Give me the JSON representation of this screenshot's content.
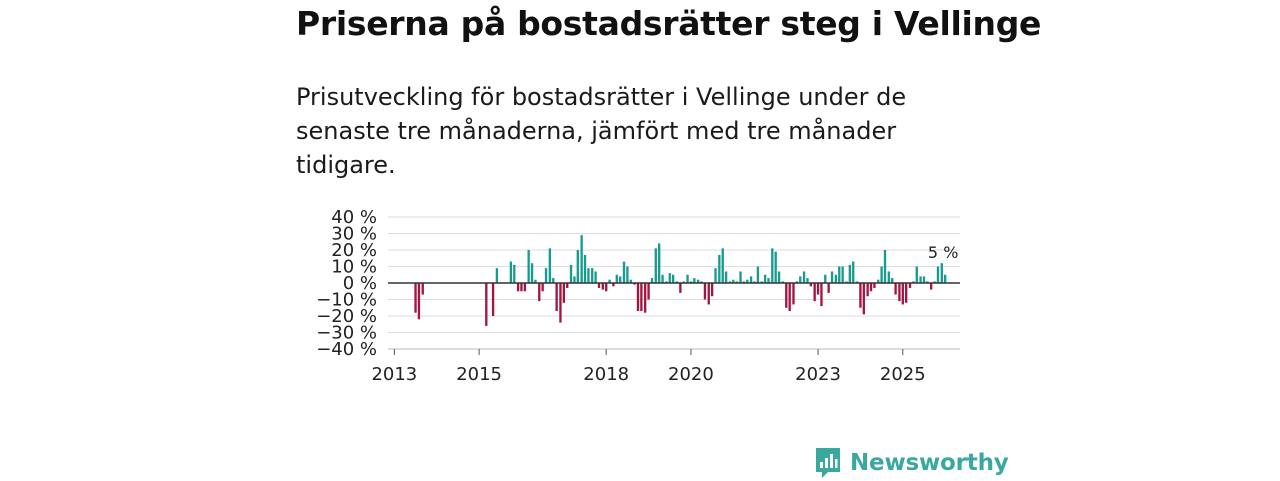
{
  "title": "Priserna på bostadsrätter steg i Vellinge",
  "subtitle": "Prisutveckling för bostadsrätter i Vellinge under de senaste tre månaderna, jämfört med tre månader tidigare.",
  "brand": {
    "name": "Newsworthy",
    "icon": "newsworthy-logo-icon"
  },
  "colors": {
    "positive": "#169b8f",
    "negative": "#a3143f",
    "grid": "#dddddd",
    "zero": "#333333",
    "brand": "#3ba8a0"
  },
  "chart_data": {
    "type": "bar",
    "ylabel": "",
    "xlabel": "",
    "ylim": [
      -40,
      40
    ],
    "y_ticks": [
      {
        "value": 40,
        "label": "40 %"
      },
      {
        "value": 30,
        "label": "30 %"
      },
      {
        "value": 20,
        "label": "20 %"
      },
      {
        "value": 10,
        "label": "10 %"
      },
      {
        "value": 0,
        "label": "0 %"
      },
      {
        "value": -10,
        "label": "−10 %"
      },
      {
        "value": -20,
        "label": "−20 %"
      },
      {
        "value": -30,
        "label": "−30 %"
      },
      {
        "value": -40,
        "label": "−40 %"
      }
    ],
    "xlim": [
      2012.85,
      2026.35
    ],
    "x_ticks": [
      {
        "value": 2013.0,
        "label": "2013"
      },
      {
        "value": 2015.0,
        "label": "2015"
      },
      {
        "value": 2018.0,
        "label": "2018"
      },
      {
        "value": 2020.0,
        "label": "2020"
      },
      {
        "value": 2023.0,
        "label": "2023"
      },
      {
        "value": 2025.0,
        "label": "2025"
      }
    ],
    "bar_width": 0.055,
    "last_value_label": "5 %",
    "series": [
      {
        "name": "Prisutveckling",
        "points": [
          {
            "x": 2013.5,
            "y": -18
          },
          {
            "x": 2013.58,
            "y": -22
          },
          {
            "x": 2013.67,
            "y": -7
          },
          {
            "x": 2015.17,
            "y": -26
          },
          {
            "x": 2015.33,
            "y": -20
          },
          {
            "x": 2015.42,
            "y": 9
          },
          {
            "x": 2015.75,
            "y": 13
          },
          {
            "x": 2015.83,
            "y": 11
          },
          {
            "x": 2015.92,
            "y": -5
          },
          {
            "x": 2016.0,
            "y": -5
          },
          {
            "x": 2016.08,
            "y": -5
          },
          {
            "x": 2016.17,
            "y": 20
          },
          {
            "x": 2016.25,
            "y": 12
          },
          {
            "x": 2016.33,
            "y": 2
          },
          {
            "x": 2016.42,
            "y": -11
          },
          {
            "x": 2016.5,
            "y": -5
          },
          {
            "x": 2016.58,
            "y": 9
          },
          {
            "x": 2016.67,
            "y": 21
          },
          {
            "x": 2016.75,
            "y": 3
          },
          {
            "x": 2016.83,
            "y": -17
          },
          {
            "x": 2016.92,
            "y": -24
          },
          {
            "x": 2017.0,
            "y": -12
          },
          {
            "x": 2017.08,
            "y": -3
          },
          {
            "x": 2017.17,
            "y": 11
          },
          {
            "x": 2017.25,
            "y": 4
          },
          {
            "x": 2017.33,
            "y": 20
          },
          {
            "x": 2017.42,
            "y": 29
          },
          {
            "x": 2017.5,
            "y": 17
          },
          {
            "x": 2017.58,
            "y": 9
          },
          {
            "x": 2017.67,
            "y": 9
          },
          {
            "x": 2017.75,
            "y": 7
          },
          {
            "x": 2017.83,
            "y": -3
          },
          {
            "x": 2017.92,
            "y": -4
          },
          {
            "x": 2018.0,
            "y": -5
          },
          {
            "x": 2018.08,
            "y": 2
          },
          {
            "x": 2018.17,
            "y": -2
          },
          {
            "x": 2018.25,
            "y": 5
          },
          {
            "x": 2018.33,
            "y": 4
          },
          {
            "x": 2018.42,
            "y": 13
          },
          {
            "x": 2018.5,
            "y": 10
          },
          {
            "x": 2018.58,
            "y": 2
          },
          {
            "x": 2018.67,
            "y": -1
          },
          {
            "x": 2018.75,
            "y": -17
          },
          {
            "x": 2018.83,
            "y": -17
          },
          {
            "x": 2018.92,
            "y": -18
          },
          {
            "x": 2019.0,
            "y": -10
          },
          {
            "x": 2019.08,
            "y": 3
          },
          {
            "x": 2019.17,
            "y": 21
          },
          {
            "x": 2019.25,
            "y": 24
          },
          {
            "x": 2019.33,
            "y": 5
          },
          {
            "x": 2019.42,
            "y": 1
          },
          {
            "x": 2019.5,
            "y": 6
          },
          {
            "x": 2019.58,
            "y": 5
          },
          {
            "x": 2019.67,
            "y": 1
          },
          {
            "x": 2019.75,
            "y": -6
          },
          {
            "x": 2019.83,
            "y": 1
          },
          {
            "x": 2019.92,
            "y": 5
          },
          {
            "x": 2020.0,
            "y": 1
          },
          {
            "x": 2020.08,
            "y": 3
          },
          {
            "x": 2020.17,
            "y": 2
          },
          {
            "x": 2020.25,
            "y": 1
          },
          {
            "x": 2020.33,
            "y": -10
          },
          {
            "x": 2020.42,
            "y": -13
          },
          {
            "x": 2020.5,
            "y": -8
          },
          {
            "x": 2020.58,
            "y": 9
          },
          {
            "x": 2020.67,
            "y": 17
          },
          {
            "x": 2020.75,
            "y": 21
          },
          {
            "x": 2020.83,
            "y": 7
          },
          {
            "x": 2020.92,
            "y": 1
          },
          {
            "x": 2021.0,
            "y": 2
          },
          {
            "x": 2021.08,
            "y": 1
          },
          {
            "x": 2021.17,
            "y": 7
          },
          {
            "x": 2021.25,
            "y": 1
          },
          {
            "x": 2021.33,
            "y": 2
          },
          {
            "x": 2021.42,
            "y": 4
          },
          {
            "x": 2021.5,
            "y": 1
          },
          {
            "x": 2021.58,
            "y": 10
          },
          {
            "x": 2021.67,
            "y": 1
          },
          {
            "x": 2021.75,
            "y": 5
          },
          {
            "x": 2021.83,
            "y": 3
          },
          {
            "x": 2021.92,
            "y": 21
          },
          {
            "x": 2022.0,
            "y": 19
          },
          {
            "x": 2022.08,
            "y": 7
          },
          {
            "x": 2022.17,
            "y": 1
          },
          {
            "x": 2022.25,
            "y": -15
          },
          {
            "x": 2022.33,
            "y": -17
          },
          {
            "x": 2022.42,
            "y": -13
          },
          {
            "x": 2022.5,
            "y": 1
          },
          {
            "x": 2022.58,
            "y": 4
          },
          {
            "x": 2022.67,
            "y": 7
          },
          {
            "x": 2022.75,
            "y": 3
          },
          {
            "x": 2022.83,
            "y": -2
          },
          {
            "x": 2022.92,
            "y": -11
          },
          {
            "x": 2023.0,
            "y": -7
          },
          {
            "x": 2023.08,
            "y": -14
          },
          {
            "x": 2023.17,
            "y": 5
          },
          {
            "x": 2023.25,
            "y": -6
          },
          {
            "x": 2023.33,
            "y": 7
          },
          {
            "x": 2023.42,
            "y": 5
          },
          {
            "x": 2023.5,
            "y": 10
          },
          {
            "x": 2023.58,
            "y": 10
          },
          {
            "x": 2023.67,
            "y": 1
          },
          {
            "x": 2023.75,
            "y": 11
          },
          {
            "x": 2023.83,
            "y": 13
          },
          {
            "x": 2023.92,
            "y": 1
          },
          {
            "x": 2024.0,
            "y": -15
          },
          {
            "x": 2024.08,
            "y": -19
          },
          {
            "x": 2024.17,
            "y": -8
          },
          {
            "x": 2024.25,
            "y": -5
          },
          {
            "x": 2024.33,
            "y": -3
          },
          {
            "x": 2024.42,
            "y": 2
          },
          {
            "x": 2024.5,
            "y": 10
          },
          {
            "x": 2024.58,
            "y": 20
          },
          {
            "x": 2024.67,
            "y": 7
          },
          {
            "x": 2024.75,
            "y": 3
          },
          {
            "x": 2024.83,
            "y": -7
          },
          {
            "x": 2024.92,
            "y": -11
          },
          {
            "x": 2025.0,
            "y": -13
          },
          {
            "x": 2025.08,
            "y": -12
          },
          {
            "x": 2025.17,
            "y": -3
          },
          {
            "x": 2025.25,
            "y": 1
          },
          {
            "x": 2025.33,
            "y": 10
          },
          {
            "x": 2025.42,
            "y": 4
          },
          {
            "x": 2025.5,
            "y": 4
          },
          {
            "x": 2025.58,
            "y": 1
          },
          {
            "x": 2025.67,
            "y": -4
          },
          {
            "x": 2025.75,
            "y": 1
          },
          {
            "x": 2025.83,
            "y": 10
          },
          {
            "x": 2025.92,
            "y": 12
          },
          {
            "x": 2026.0,
            "y": 5
          }
        ]
      }
    ]
  }
}
